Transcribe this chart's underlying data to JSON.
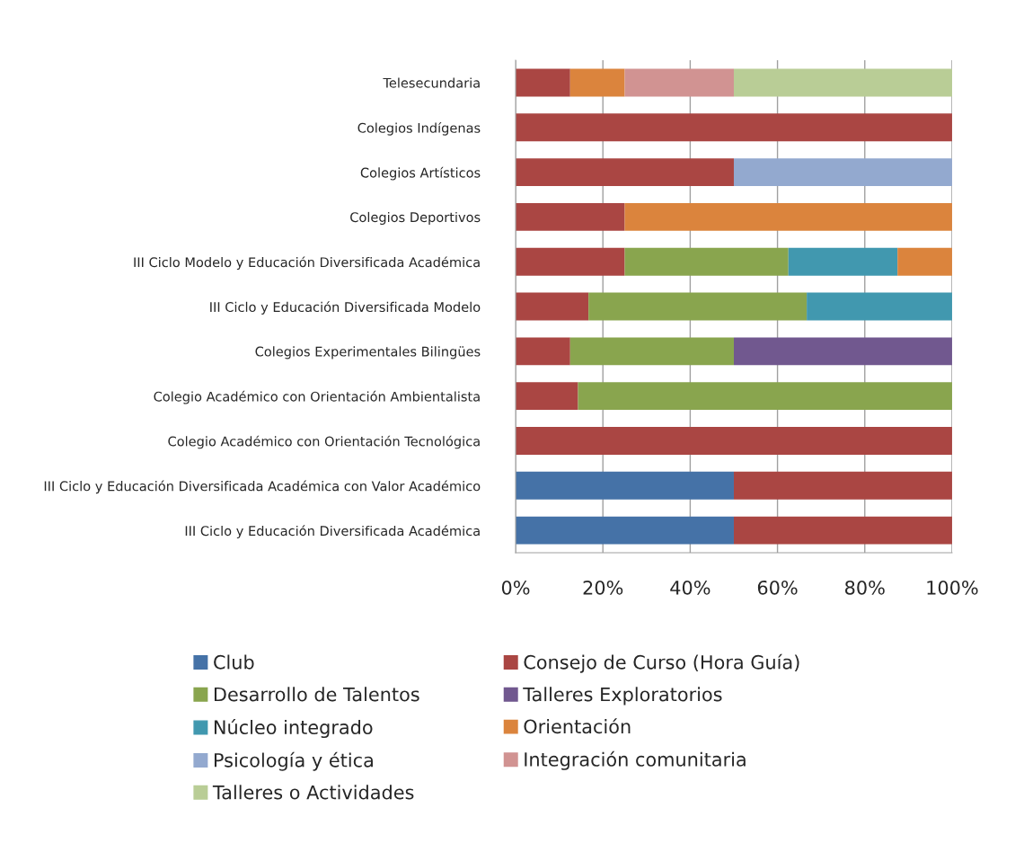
{
  "chart_data": {
    "type": "bar",
    "orientation": "horizontal",
    "stacked": true,
    "categories": [
      "Telesecundaria",
      "Colegios Indígenas",
      "Colegios Artísticos",
      "Colegios Deportivos",
      "III Ciclo Modelo y Educación Diversificada Académica",
      "III Ciclo y Educación Diversificada Modelo",
      "Colegios Experimentales Bilingües",
      "Colegio Académico con Orientación Ambientalista",
      "Colegio Académico con Orientación Tecnológica",
      "III Ciclo y Educación Diversificada Académica con Valor Académico",
      "III Ciclo y Educación Diversificada Académica"
    ],
    "series": [
      {
        "name": "Club",
        "color": "#4572a7",
        "values": [
          0,
          0,
          0,
          0,
          0,
          0,
          0,
          0,
          0,
          50,
          50
        ]
      },
      {
        "name": "Consejo de Curso (Hora Guía)",
        "color": "#aa4643",
        "values": [
          12.5,
          100,
          50,
          25,
          25,
          16.7,
          12.5,
          14.3,
          100,
          50,
          50
        ]
      },
      {
        "name": "Desarrollo de Talentos",
        "color": "#89a54e",
        "values": [
          0,
          0,
          0,
          0,
          37.5,
          50,
          37.5,
          85.7,
          0,
          0,
          0
        ]
      },
      {
        "name": "Talleres Exploratorios",
        "color": "#71588f",
        "values": [
          0,
          0,
          0,
          0,
          0,
          0,
          50,
          0,
          0,
          0,
          0
        ]
      },
      {
        "name": "Núcleo integrado",
        "color": "#4198af",
        "values": [
          0,
          0,
          0,
          0,
          25,
          33.3,
          0,
          0,
          0,
          0,
          0
        ]
      },
      {
        "name": "Orientación",
        "color": "#db843d",
        "values": [
          12.5,
          0,
          0,
          75,
          12.5,
          0,
          0,
          0,
          0,
          0,
          0
        ]
      },
      {
        "name": "Psicología y ética",
        "color": "#93a9cf",
        "values": [
          0,
          0,
          50,
          0,
          0,
          0,
          0,
          0,
          0,
          0,
          0
        ]
      },
      {
        "name": "Integración comunitaria",
        "color": "#d19392",
        "values": [
          25,
          0,
          0,
          0,
          0,
          0,
          0,
          0,
          0,
          0,
          0
        ]
      },
      {
        "name": "Talleres o Actividades",
        "color": "#b9cd96",
        "values": [
          50,
          0,
          0,
          0,
          0,
          0,
          0,
          0,
          0,
          0,
          0
        ]
      }
    ],
    "xlim": [
      0,
      100
    ],
    "xticks": [
      {
        "value": 0,
        "label": "0%"
      },
      {
        "value": 20,
        "label": "20%"
      },
      {
        "value": 40,
        "label": "40%"
      },
      {
        "value": 60,
        "label": "60%"
      },
      {
        "value": 80,
        "label": "80%"
      },
      {
        "value": 100,
        "label": "100%"
      }
    ],
    "grid": "x",
    "legend": "bottom"
  }
}
